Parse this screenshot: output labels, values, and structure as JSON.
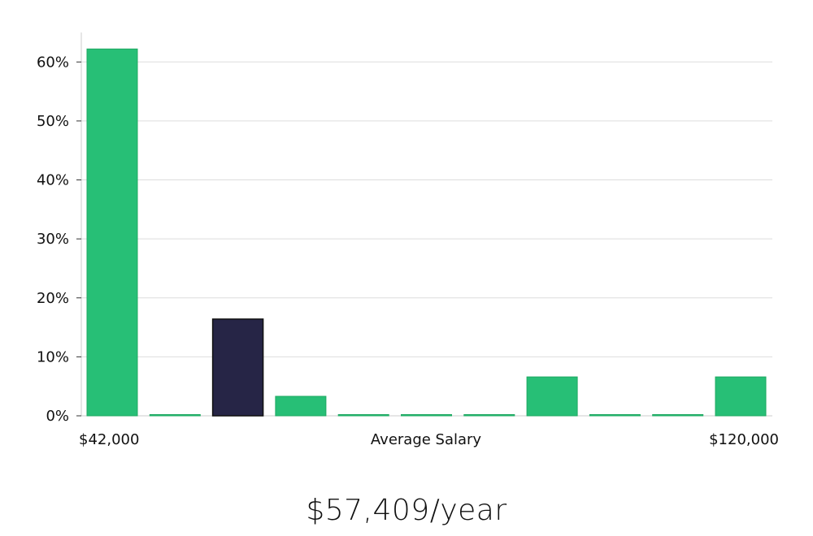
{
  "chart_data": {
    "type": "bar",
    "categories": [
      "1",
      "2",
      "3",
      "4",
      "5",
      "6",
      "7",
      "8",
      "9",
      "10",
      "11"
    ],
    "values": [
      62.2,
      0,
      16.4,
      3.3,
      0,
      0,
      0,
      6.6,
      0,
      0,
      6.6
    ],
    "highlight_index": 2,
    "ylim": [
      0,
      65
    ],
    "y_ticks": [
      0,
      10,
      20,
      30,
      40,
      50,
      60
    ],
    "y_tick_format": "%",
    "xlabel": "Average Salary",
    "x_min_label": "$42,000",
    "x_max_label": "$120,000",
    "grid": true,
    "colors": {
      "bar": "#27bf76",
      "highlight": "#262546",
      "grid": "#dddddd",
      "axis": "#cccccc"
    }
  },
  "headline": {
    "salary": "$57,409/year"
  }
}
